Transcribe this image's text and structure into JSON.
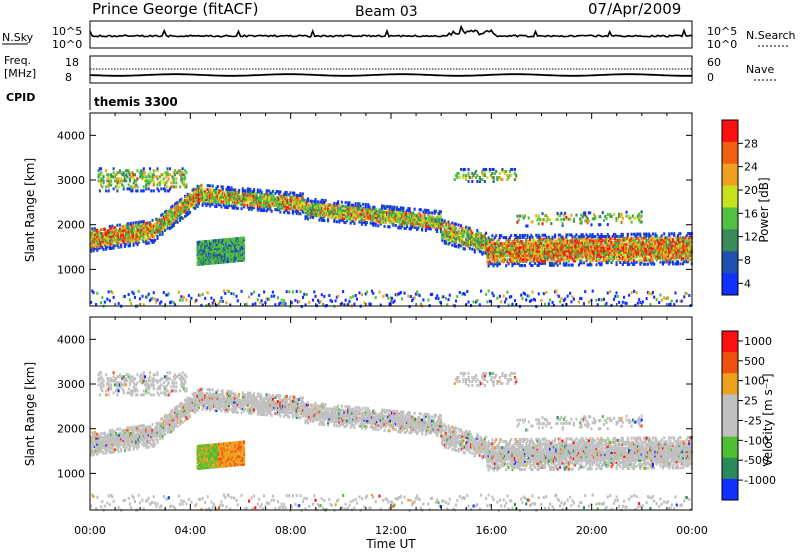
{
  "header": {
    "title": "Prince George (fitACF)",
    "beam": "Beam 03",
    "date": "07/Apr/2009"
  },
  "status_panel": {
    "nsky_label": "N.Sky",
    "nsky_ticks": [
      "10^5",
      "10^0"
    ],
    "nsearch_label": "N.Search",
    "freq_label_line1": "Freq.",
    "freq_label_line2": "[MHz]",
    "freq_ticks": [
      "18",
      "8"
    ],
    "nave_label": "Nave",
    "nave_ticks": [
      "60",
      "0"
    ],
    "cpid_label": "CPID",
    "cpid_value": "themis 3300"
  },
  "chart_data": [
    {
      "type": "heatmap",
      "name": "power",
      "ylabel": "Slant Range [km]",
      "xlabel": "",
      "ylim": [
        180,
        4500
      ],
      "xlim": [
        0,
        24
      ],
      "yticks": [
        1000,
        2000,
        3000,
        4000
      ],
      "colorbar_label": "Power [dB]",
      "colorbar_ticks": [
        "28",
        "24",
        "20",
        "16",
        "12",
        "8",
        "4"
      ],
      "colorbar_range": [
        0,
        30
      ],
      "colors": [
        "#1030ff",
        "#2050b0",
        "#3a8a5a",
        "#50c040",
        "#c8e020",
        "#f0a020",
        "#f06010",
        "#ff1010"
      ]
    },
    {
      "type": "heatmap",
      "name": "velocity",
      "ylabel": "Slant Range [km]",
      "xlabel": "Time UT",
      "ylim": [
        180,
        4500
      ],
      "xlim": [
        0,
        24
      ],
      "yticks": [
        1000,
        2000,
        3000,
        4000
      ],
      "xtick_labels": [
        "00:00",
        "04:00",
        "08:00",
        "12:00",
        "16:00",
        "20:00",
        "00:00"
      ],
      "colorbar_label": "Velocity [m s⁻¹]",
      "colorbar_ticks": [
        "1000",
        "500",
        "100",
        "25",
        "-25",
        "-100",
        "-500",
        "-1000"
      ],
      "colors": [
        "#1030ff",
        "#2a8a5a",
        "#50c030",
        "#c0c0c0",
        "#c0c0c0",
        "#f0a020",
        "#f05010",
        "#ff1010"
      ]
    }
  ]
}
